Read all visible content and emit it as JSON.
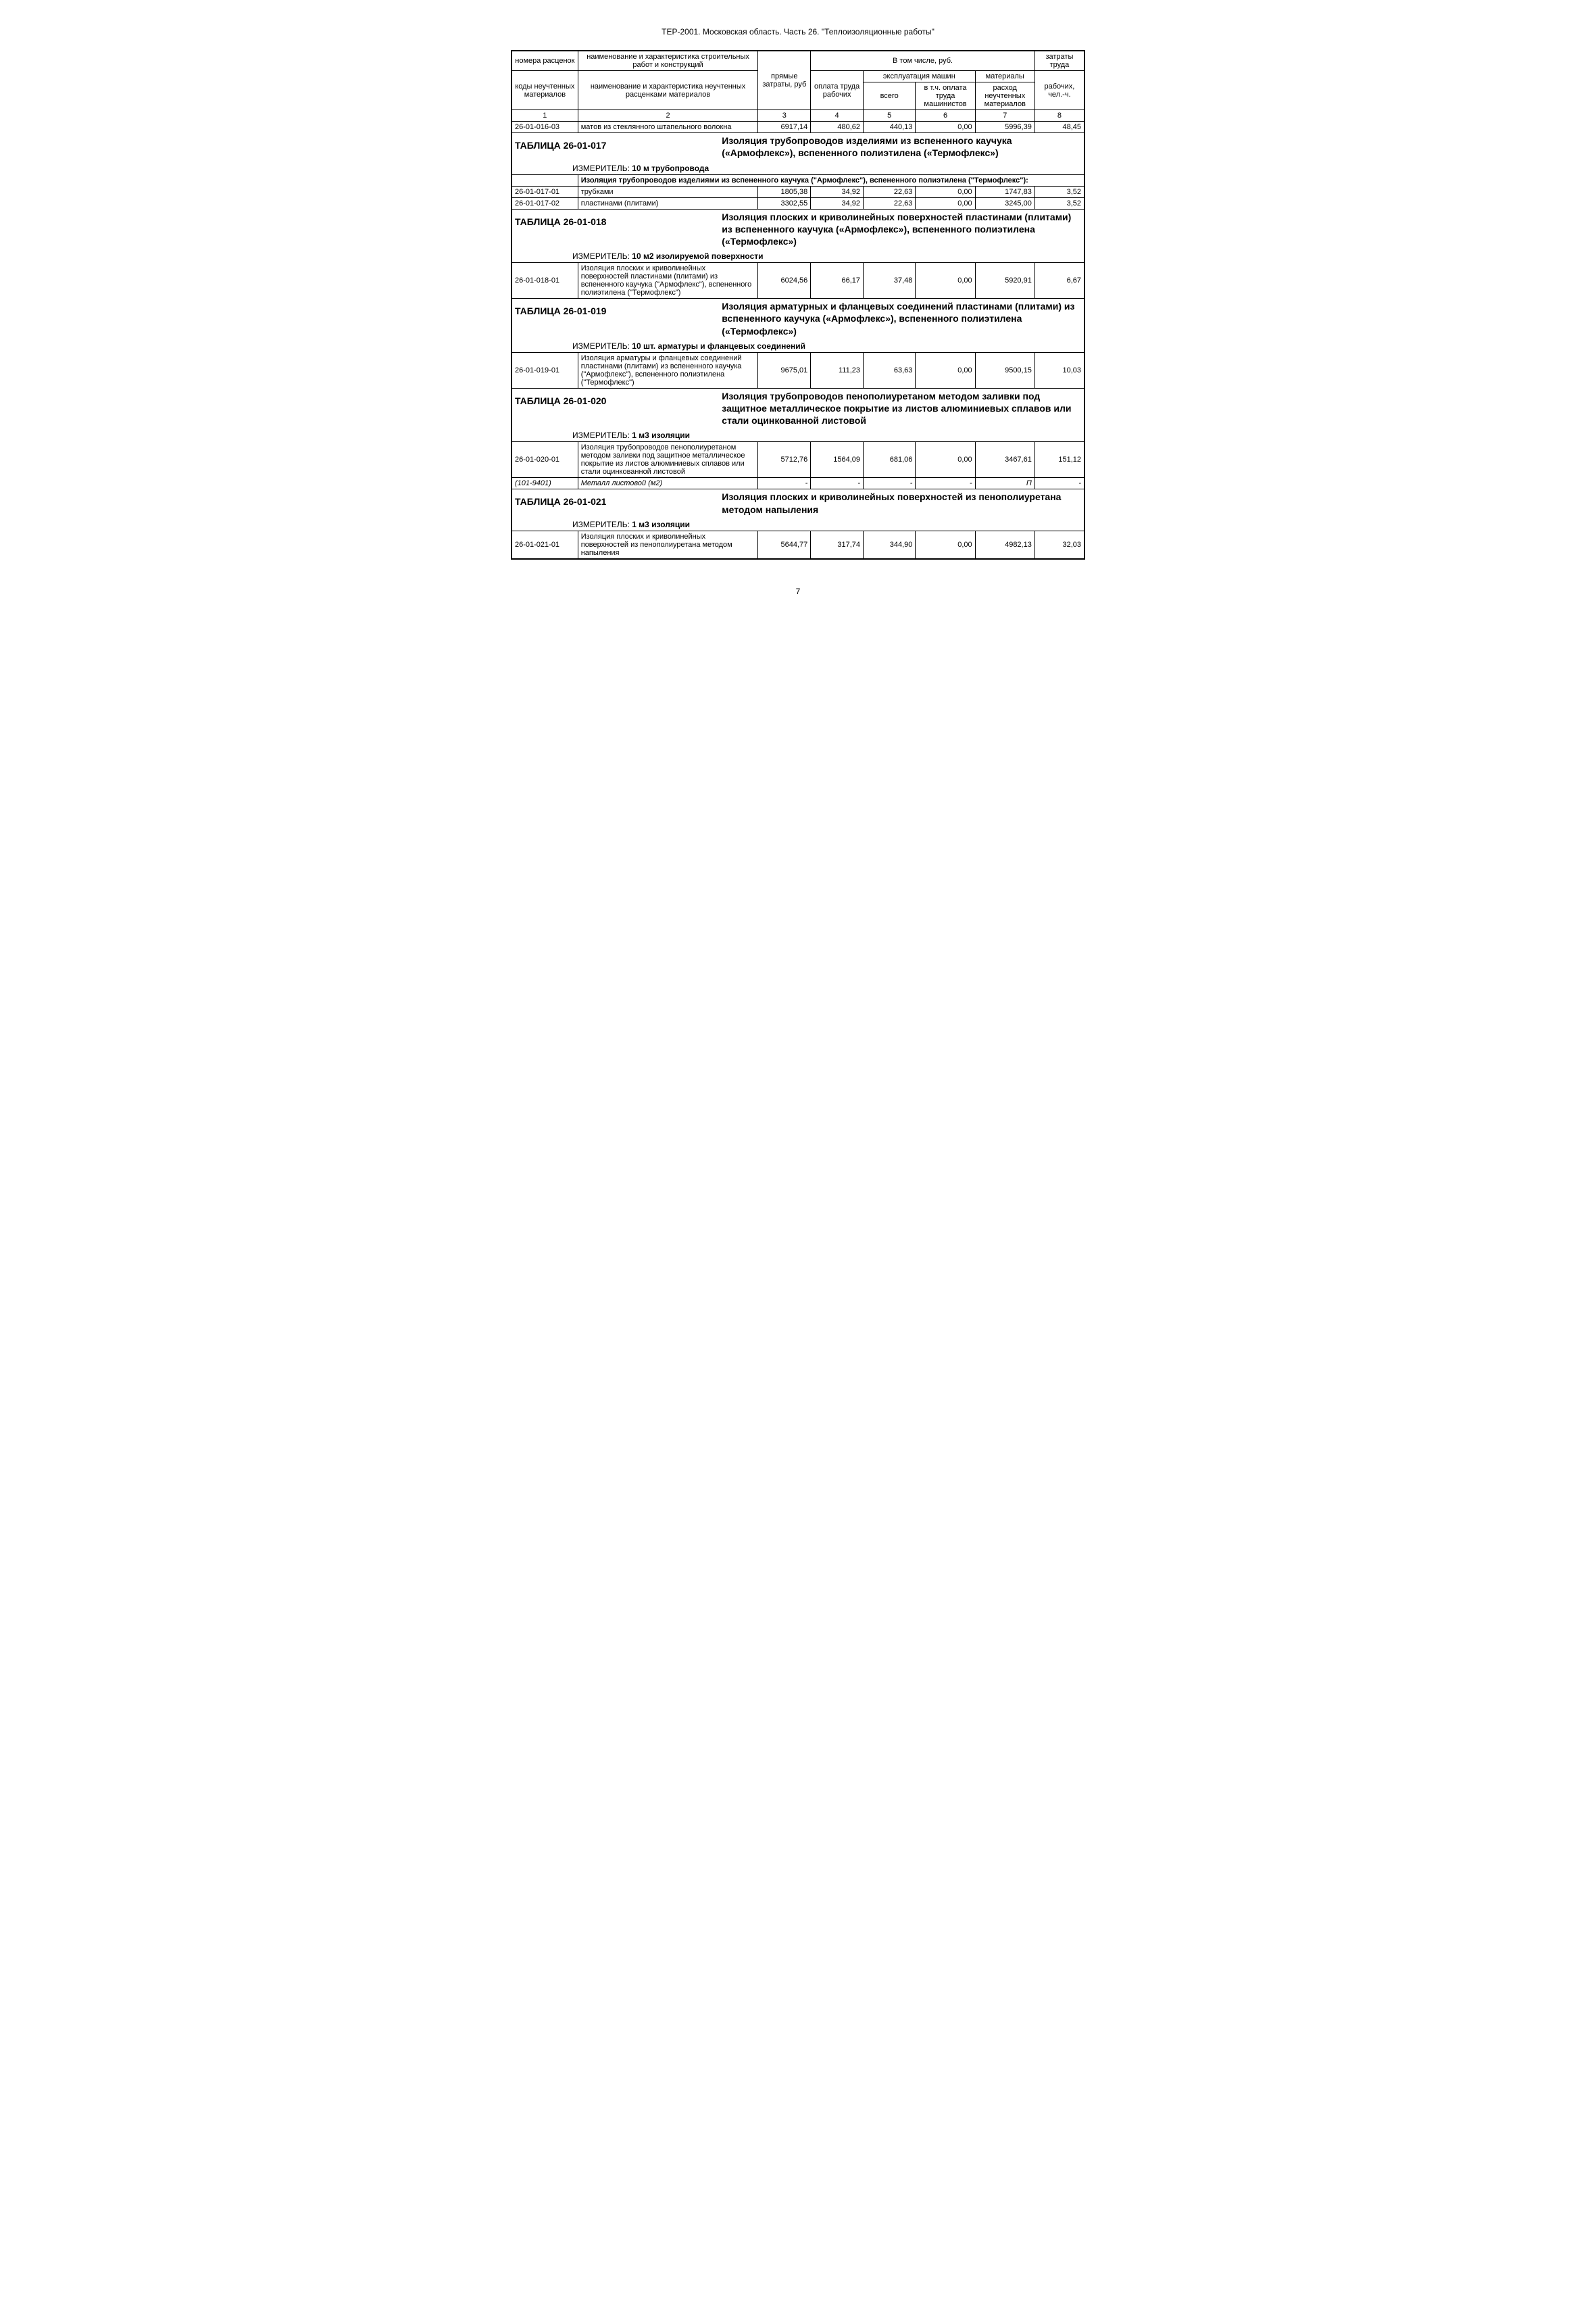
{
  "doc_title": "ТЕР-2001. Московская область. Часть 26. \"Теплоизоляционные работы\"",
  "header": {
    "c1a": "номера расценок",
    "c1b": "коды неучтенных материалов",
    "c2a": "наименование и характеристика строительных работ и конструкций",
    "c2b": "наименование и характеристика неучтенных расценками материалов",
    "c3": "прямые затраты, руб",
    "group": "В том числе, руб.",
    "c4": "оплата труда рабочих",
    "c5g": "эксплуатация машин",
    "c5": "всего",
    "c6": "в т.ч. оплата труда машинистов",
    "c7a": "материалы",
    "c7": "расход неучтенных материалов",
    "c8a": "затраты труда",
    "c8": "рабочих, чел.-ч.",
    "n1": "1",
    "n2": "2",
    "n3": "3",
    "n4": "4",
    "n5": "5",
    "n6": "6",
    "n7": "7",
    "n8": "8"
  },
  "row_016_03": {
    "code": "26-01-016-03",
    "desc": "матов из стеклянного штапельного волокна",
    "v3": "6917,14",
    "v4": "480,62",
    "v5": "440,13",
    "v6": "0,00",
    "v7": "5996,39",
    "v8": "48,45"
  },
  "t017": {
    "title": "ТАБЛИЦА 26-01-017",
    "heading": "Изоляция трубопроводов изделиями из вспененного каучука («Армофлекс»), вспененного полиэтилена («Термофлекс»)",
    "meter_label": "ИЗМЕРИТЕЛЬ:",
    "meter": "10 м трубопровода",
    "sub": "Изоляция трубопроводов изделиями из вспененного каучука (\"Армофлекс\"), вспененного полиэтилена (\"Термофлекс\"):",
    "r1": {
      "code": "26-01-017-01",
      "desc": "трубками",
      "v3": "1805,38",
      "v4": "34,92",
      "v5": "22,63",
      "v6": "0,00",
      "v7": "1747,83",
      "v8": "3,52"
    },
    "r2": {
      "code": "26-01-017-02",
      "desc": "пластинами (плитами)",
      "v3": "3302,55",
      "v4": "34,92",
      "v5": "22,63",
      "v6": "0,00",
      "v7": "3245,00",
      "v8": "3,52"
    }
  },
  "t018": {
    "title": "ТАБЛИЦА 26-01-018",
    "heading": "Изоляция плоских и криволинейных поверхностей пластинами (плитами) из вспененного каучука («Армофлекс»), вспененного полиэтилена («Термофлекс»)",
    "meter_label": "ИЗМЕРИТЕЛЬ:",
    "meter": "10 м2 изолируемой поверхности",
    "r1": {
      "code": "26-01-018-01",
      "desc": "Изоляция плоских и криволинейных поверхностей пластинами (плитами) из вспененного каучука (\"Армофлекс\"), вспененного полиэтилена (\"Термофлекс\")",
      "v3": "6024,56",
      "v4": "66,17",
      "v5": "37,48",
      "v6": "0,00",
      "v7": "5920,91",
      "v8": "6,67"
    }
  },
  "t019": {
    "title": "ТАБЛИЦА 26-01-019",
    "heading": "Изоляция арматурных и фланцевых соединений пластинами (плитами) из вспененного каучука («Армофлекс»), вспененного полиэтилена («Термофлекс»)",
    "meter_label": "ИЗМЕРИТЕЛЬ:",
    "meter": "10 шт. арматуры и фланцевых соединений",
    "r1": {
      "code": "26-01-019-01",
      "desc": "Изоляция арматуры и фланцевых соединений пластинами (плитами) из вспененного каучука (\"Армофлекс\"), вспененного полиэтилена (\"Термофлекс\")",
      "v3": "9675,01",
      "v4": "111,23",
      "v5": "63,63",
      "v6": "0,00",
      "v7": "9500,15",
      "v8": "10,03"
    }
  },
  "t020": {
    "title": "ТАБЛИЦА 26-01-020",
    "heading": "Изоляция трубопроводов пенополиуретаном методом заливки под защитное металлическое покрытие из листов алюминиевых сплавов или стали оцинкованной листовой",
    "meter_label": "ИЗМЕРИТЕЛЬ:",
    "meter": "1 м3 изоляции",
    "r1": {
      "code": "26-01-020-01",
      "desc": "Изоляция трубопроводов пенополиуретаном методом заливки под защитное металлическое покрытие из листов алюминиевых сплавов или стали оцинкованной листовой",
      "v3": "5712,76",
      "v4": "1564,09",
      "v5": "681,06",
      "v6": "0,00",
      "v7": "3467,61",
      "v8": "151,12"
    },
    "r2": {
      "code": "(101-9401)",
      "desc": "Металл листовой (м2)",
      "v3": "-",
      "v4": "-",
      "v5": "-",
      "v6": "-",
      "v7": "П",
      "v8": "-"
    }
  },
  "t021": {
    "title": "ТАБЛИЦА 26-01-021",
    "heading": "Изоляция плоских и криволинейных поверхностей из пенополиуретана методом напыления",
    "meter_label": "ИЗМЕРИТЕЛЬ:",
    "meter": "1 м3 изоляции",
    "r1": {
      "code": "26-01-021-01",
      "desc": "Изоляция плоских и криволинейных поверхностей из пенополиуретана методом напыления",
      "v3": "5644,77",
      "v4": "317,74",
      "v5": "344,90",
      "v6": "0,00",
      "v7": "4982,13",
      "v8": "32,03"
    }
  },
  "page_num": "7"
}
